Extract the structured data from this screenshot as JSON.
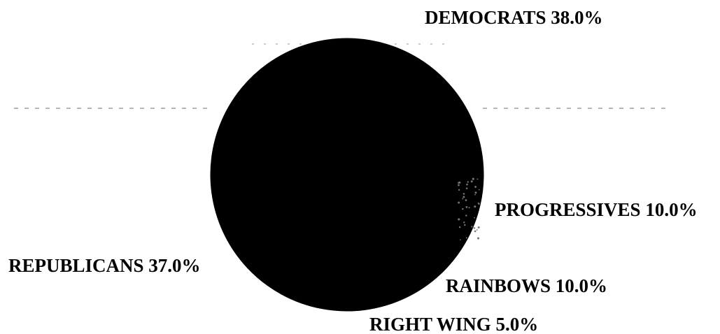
{
  "chart_data": {
    "type": "pie",
    "title": "",
    "slices": [
      {
        "label": "DEMOCRATS",
        "value": 38.0,
        "display": "DEMOCRATS 38.0%",
        "color": "#000000"
      },
      {
        "label": "PROGRESSIVES",
        "value": 10.0,
        "display": "PROGRESSIVES 10.0%",
        "color": "#000000"
      },
      {
        "label": "RAINBOWS",
        "value": 10.0,
        "display": "RAINBOWS 10.0%",
        "color": "#000000"
      },
      {
        "label": "RIGHT WING",
        "value": 5.0,
        "display": "RIGHT WING 5.0%",
        "color": "#000000"
      },
      {
        "label": "REPUBLICANS",
        "value": 37.0,
        "display": "REPUBLICANS 37.0%",
        "color": "#000000"
      }
    ],
    "legend": "none"
  }
}
